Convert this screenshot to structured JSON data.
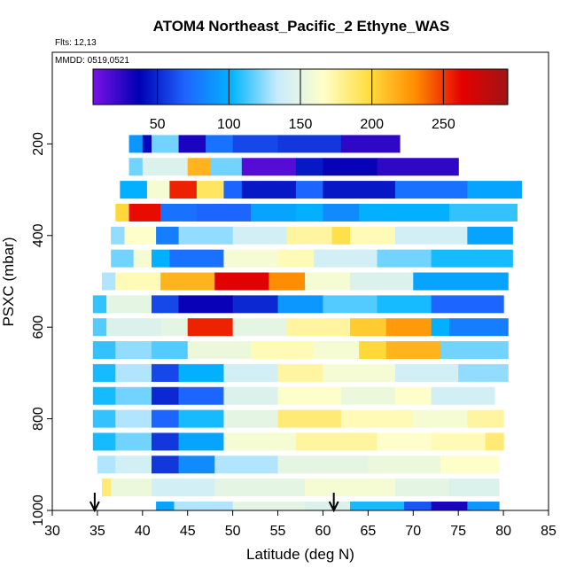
{
  "chart_data": {
    "type": "heatmap",
    "title": "ATOM4 Northeast_Pacific_2 Ethyne_WAS",
    "flights_label": "Flts: 12,13",
    "dates_label": "MMDD: 0519,0521",
    "xlabel": "Latitude (deg N)",
    "ylabel": "PSXC (mbar)",
    "xlim": [
      30,
      85
    ],
    "ylim": [
      1000,
      0
    ],
    "xticks": [
      "30",
      "35",
      "40",
      "45",
      "50",
      "55",
      "60",
      "65",
      "70",
      "75",
      "80",
      "85"
    ],
    "yticks": [
      "200",
      "400",
      "600",
      "800",
      "1000"
    ],
    "colorbar": {
      "range": [
        5,
        295
      ],
      "ticks": [
        "50",
        "100",
        "150",
        "200",
        "250"
      ],
      "colors": [
        "#7a12e6",
        "#0000b4",
        "#1e64ff",
        "#00b4ff",
        "#c8ebff",
        "#ffffc8",
        "#ffdc3c",
        "#ff8c00",
        "#e60000",
        "#a01414"
      ]
    },
    "arrows": [
      {
        "lat": 34.7
      },
      {
        "lat": 61.2
      }
    ],
    "rows": [
      {
        "pressure": 200,
        "segments": [
          [
            38.5,
            40,
            90
          ],
          [
            40,
            41,
            40
          ],
          [
            41,
            44,
            120
          ],
          [
            44,
            47,
            30
          ],
          [
            47,
            50,
            75
          ],
          [
            50,
            55,
            60
          ],
          [
            55,
            62,
            55
          ],
          [
            62,
            68.5,
            25
          ]
        ]
      },
      {
        "pressure": 250,
        "segments": [
          [
            38.5,
            40,
            120
          ],
          [
            40,
            45,
            145
          ],
          [
            45,
            47.5,
            215
          ],
          [
            47.5,
            51,
            120
          ],
          [
            51,
            57,
            15
          ],
          [
            57,
            60,
            45
          ],
          [
            60,
            66,
            35
          ],
          [
            66,
            75,
            25
          ]
        ]
      },
      {
        "pressure": 300,
        "segments": [
          [
            37.5,
            40.5,
            100
          ],
          [
            40.5,
            43,
            160
          ],
          [
            43,
            46,
            255
          ],
          [
            46,
            49,
            190
          ],
          [
            49,
            51,
            70
          ],
          [
            51,
            57,
            45
          ],
          [
            57,
            60,
            70
          ],
          [
            60,
            68,
            45
          ],
          [
            68,
            76,
            75
          ],
          [
            76,
            82,
            95
          ]
        ]
      },
      {
        "pressure": 350,
        "segments": [
          [
            37,
            38.5,
            200
          ],
          [
            38.5,
            42,
            260
          ],
          [
            42,
            46,
            75
          ],
          [
            46,
            52,
            70
          ],
          [
            52,
            57,
            95
          ],
          [
            57,
            60,
            100
          ],
          [
            60,
            64,
            85
          ],
          [
            64,
            74,
            100
          ],
          [
            74,
            81.5,
            110
          ]
        ]
      },
      {
        "pressure": 400,
        "segments": [
          [
            36.5,
            38,
            125
          ],
          [
            38,
            41.5,
            165
          ],
          [
            41.5,
            44,
            80
          ],
          [
            44,
            50,
            125
          ],
          [
            50,
            56,
            140
          ],
          [
            56,
            61,
            175
          ],
          [
            61,
            63,
            195
          ],
          [
            63,
            68,
            170
          ],
          [
            68,
            76,
            140
          ],
          [
            76,
            81,
            95
          ]
        ]
      },
      {
        "pressure": 450,
        "segments": [
          [
            36.5,
            39,
            120
          ],
          [
            39,
            41,
            160
          ],
          [
            41,
            43,
            100
          ],
          [
            43,
            49,
            75
          ],
          [
            49,
            55,
            160
          ],
          [
            55,
            59,
            170
          ],
          [
            59,
            66,
            140
          ],
          [
            66,
            72,
            120
          ],
          [
            72,
            81,
            105
          ]
        ]
      },
      {
        "pressure": 500,
        "segments": [
          [
            35.5,
            37,
            130
          ],
          [
            37,
            42,
            170
          ],
          [
            42,
            48,
            215
          ],
          [
            48,
            54,
            265
          ],
          [
            54,
            58,
            230
          ],
          [
            58,
            63,
            160
          ],
          [
            63,
            70,
            145
          ],
          [
            70,
            80.5,
            95
          ]
        ]
      },
      {
        "pressure": 550,
        "segments": [
          [
            34.5,
            36,
            110
          ],
          [
            36,
            41,
            150
          ],
          [
            41,
            44,
            60
          ],
          [
            44,
            50,
            35
          ],
          [
            50,
            55,
            50
          ],
          [
            55,
            60,
            90
          ],
          [
            60,
            66,
            115
          ],
          [
            66,
            72,
            105
          ],
          [
            72,
            80,
            70
          ]
        ]
      },
      {
        "pressure": 600,
        "segments": [
          [
            34.5,
            36,
            115
          ],
          [
            36,
            42,
            145
          ],
          [
            42,
            45,
            150
          ],
          [
            45,
            50,
            255
          ],
          [
            50,
            56,
            150
          ],
          [
            56,
            63,
            175
          ],
          [
            63,
            67,
            205
          ],
          [
            67,
            72,
            225
          ],
          [
            72,
            74,
            100
          ],
          [
            74,
            80.5,
            80
          ]
        ]
      },
      {
        "pressure": 650,
        "segments": [
          [
            34.5,
            37,
            110
          ],
          [
            37,
            41,
            125
          ],
          [
            41,
            45,
            115
          ],
          [
            45,
            52,
            155
          ],
          [
            52,
            59,
            170
          ],
          [
            59,
            64,
            160
          ],
          [
            64,
            67,
            200
          ],
          [
            67,
            73,
            215
          ],
          [
            73,
            80.5,
            120
          ]
        ]
      },
      {
        "pressure": 700,
        "segments": [
          [
            34.5,
            37,
            105
          ],
          [
            37,
            41,
            130
          ],
          [
            41,
            44,
            60
          ],
          [
            44,
            49,
            100
          ],
          [
            49,
            55,
            140
          ],
          [
            55,
            60,
            175
          ],
          [
            60,
            68,
            160
          ],
          [
            68,
            75,
            140
          ],
          [
            75,
            80.5,
            125
          ]
        ]
      },
      {
        "pressure": 750,
        "segments": [
          [
            34.5,
            37,
            105
          ],
          [
            37,
            41,
            120
          ],
          [
            41,
            44,
            50
          ],
          [
            44,
            49,
            70
          ],
          [
            49,
            55,
            145
          ],
          [
            55,
            62,
            165
          ],
          [
            62,
            68,
            155
          ],
          [
            68,
            72,
            165
          ],
          [
            72,
            79,
            140
          ]
        ]
      },
      {
        "pressure": 800,
        "segments": [
          [
            34.5,
            37,
            110
          ],
          [
            37,
            41,
            130
          ],
          [
            41,
            44,
            70
          ],
          [
            44,
            49,
            105
          ],
          [
            49,
            55,
            150
          ],
          [
            55,
            62,
            185
          ],
          [
            62,
            70,
            170
          ],
          [
            70,
            76,
            160
          ],
          [
            76,
            80,
            175
          ]
        ]
      },
      {
        "pressure": 850,
        "segments": [
          [
            34.5,
            37,
            105
          ],
          [
            37,
            41,
            120
          ],
          [
            41,
            44,
            55
          ],
          [
            44,
            49,
            95
          ],
          [
            49,
            57,
            160
          ],
          [
            57,
            66,
            175
          ],
          [
            66,
            72,
            165
          ],
          [
            72,
            78,
            170
          ],
          [
            78,
            80,
            185
          ]
        ]
      },
      {
        "pressure": 900,
        "segments": [
          [
            35,
            37,
            130
          ],
          [
            37,
            41,
            140
          ],
          [
            41,
            44,
            55
          ],
          [
            44,
            48,
            85
          ],
          [
            48,
            55,
            130
          ],
          [
            55,
            65,
            150
          ],
          [
            65,
            73,
            155
          ],
          [
            73,
            79.5,
            165
          ]
        ]
      },
      {
        "pressure": 950,
        "segments": [
          [
            35.5,
            36.5,
            185
          ],
          [
            36.5,
            41,
            155
          ],
          [
            41,
            48,
            140
          ],
          [
            48,
            58,
            150
          ],
          [
            58,
            68,
            160
          ],
          [
            68,
            74,
            150
          ],
          [
            74,
            79.5,
            145
          ]
        ]
      },
      {
        "pressure": 1000,
        "segments": [
          [
            41.5,
            43.5,
            95
          ],
          [
            43.5,
            50,
            130
          ],
          [
            50,
            58,
            150
          ],
          [
            58,
            63,
            145
          ],
          [
            63,
            69,
            105
          ],
          [
            69,
            72,
            65
          ],
          [
            72,
            76,
            30
          ],
          [
            76,
            79.5,
            90
          ]
        ]
      }
    ]
  }
}
